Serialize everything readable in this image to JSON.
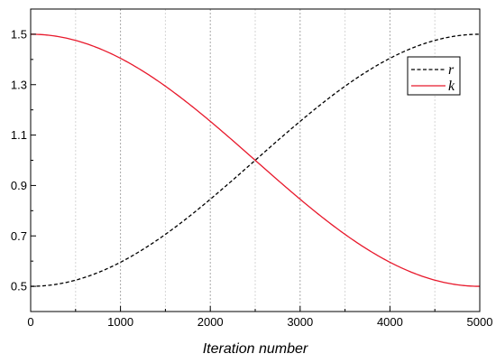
{
  "chart_data": {
    "type": "line",
    "title": "",
    "xlabel": "Iteration number",
    "ylabel": "",
    "xlim": [
      0,
      5000
    ],
    "ylim": [
      0.4,
      1.6
    ],
    "x_ticks": [
      0,
      1000,
      2000,
      3000,
      4000,
      5000
    ],
    "x_tick_labels": [
      "0",
      "1000",
      "2000",
      "3000",
      "4000",
      "5000"
    ],
    "x_minor_ticks": [
      500,
      1500,
      2500,
      3500,
      4500
    ],
    "y_ticks": [
      0.5,
      0.7,
      0.9,
      1.1,
      1.3,
      1.5
    ],
    "y_tick_labels": [
      "0.5",
      "0.7",
      "0.9",
      "1.1",
      "1.3",
      "1.5"
    ],
    "grid": true,
    "legend_position": "top-right",
    "x": [
      0,
      500,
      1000,
      1500,
      2000,
      2500,
      3000,
      3500,
      4000,
      4500,
      5000
    ],
    "series": [
      {
        "name": "r",
        "style": "dashed",
        "color": "#000000",
        "values": [
          0.5,
          0.52,
          0.6,
          0.71,
          0.85,
          1.0,
          1.15,
          1.29,
          1.4,
          1.48,
          1.5
        ]
      },
      {
        "name": "k",
        "style": "solid",
        "color": "#e8192c",
        "values": [
          1.5,
          1.48,
          1.4,
          1.29,
          1.15,
          1.0,
          0.85,
          0.71,
          0.6,
          0.52,
          0.5
        ]
      }
    ]
  }
}
